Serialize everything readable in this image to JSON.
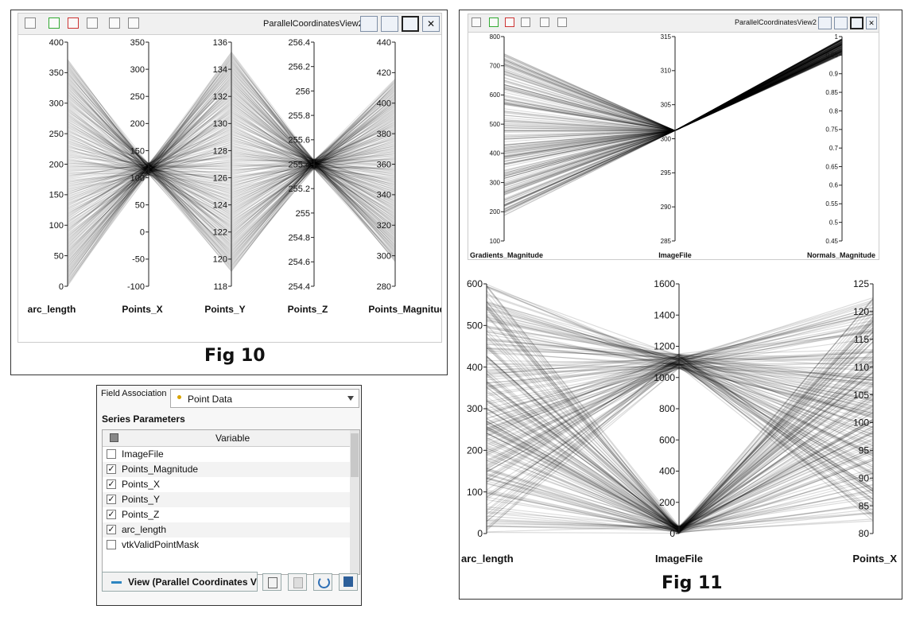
{
  "fig10": {
    "view_title": "ParallelCoordinatesView2",
    "caption": "Fig 10",
    "axes": [
      {
        "name": "arc_length",
        "ticks": [
          "400",
          "350",
          "300",
          "250",
          "200",
          "150",
          "100",
          "50",
          "0"
        ]
      },
      {
        "name": "Points_X",
        "ticks": [
          "350",
          "300",
          "250",
          "200",
          "150",
          "100",
          "50",
          "0",
          "-50",
          "-100"
        ]
      },
      {
        "name": "Points_Y",
        "ticks": [
          "136",
          "134",
          "132",
          "130",
          "128",
          "126",
          "124",
          "122",
          "120",
          "118"
        ]
      },
      {
        "name": "Points_Z",
        "ticks": [
          "256.4",
          "256.2",
          "256",
          "255.8",
          "255.6",
          "255.4",
          "255.2",
          "255",
          "254.8",
          "254.6",
          "254.4"
        ]
      },
      {
        "name": "Points_Magnitude",
        "ticks": [
          "440",
          "420",
          "400",
          "380",
          "360",
          "340",
          "320",
          "300",
          "280"
        ]
      }
    ]
  },
  "fig11": {
    "view_title": "ParallelCoordinatesView2",
    "caption": "Fig 11",
    "top_axes": [
      {
        "name": "Gradients_Magnitude",
        "ticks": [
          "800",
          "700",
          "600",
          "500",
          "400",
          "300",
          "200",
          "100"
        ]
      },
      {
        "name": "ImageFile",
        "ticks": [
          "315",
          "310",
          "305",
          "300",
          "295",
          "290",
          "285"
        ]
      },
      {
        "name": "Normals_Magnitude",
        "ticks": [
          "1",
          "0.95",
          "0.9",
          "0.85",
          "0.8",
          "0.75",
          "0.7",
          "0.65",
          "0.6",
          "0.55",
          "0.5",
          "0.45"
        ]
      }
    ],
    "bottom_axes": [
      {
        "name": "arc_length",
        "ticks": [
          "600",
          "500",
          "400",
          "300",
          "200",
          "100",
          "0"
        ]
      },
      {
        "name": "ImageFile",
        "ticks": [
          "1600",
          "1400",
          "1200",
          "1000",
          "800",
          "600",
          "400",
          "200",
          "0"
        ]
      },
      {
        "name": "Points_X",
        "ticks": [
          "125",
          "120",
          "115",
          "110",
          "105",
          "100",
          "95",
          "90",
          "85",
          "80"
        ]
      }
    ]
  },
  "panel": {
    "field_association_label": "Field Association",
    "field_association_value": "Point Data",
    "series_parameters_label": "Series Parameters",
    "variable_header": "Variable",
    "variables": [
      {
        "name": "ImageFile",
        "checked": false
      },
      {
        "name": "Points_Magnitude",
        "checked": true
      },
      {
        "name": "Points_X",
        "checked": true
      },
      {
        "name": "Points_Y",
        "checked": true
      },
      {
        "name": "Points_Z",
        "checked": true
      },
      {
        "name": "arc_length",
        "checked": true
      },
      {
        "name": "vtkValidPointMask",
        "checked": false
      }
    ],
    "view_button_label": "View (Parallel Coordinates V",
    "check_mark": "✓"
  }
}
